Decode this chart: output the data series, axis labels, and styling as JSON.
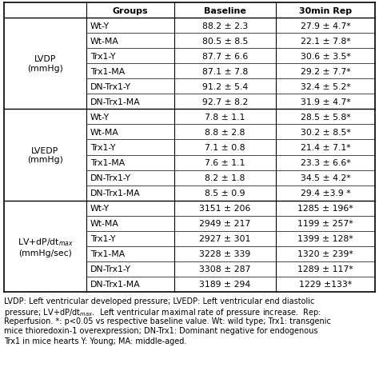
{
  "headers": [
    "Groups",
    "Baseline",
    "30min Rep"
  ],
  "sections": [
    {
      "label": "LVDP\n(mmHg)",
      "rows": [
        [
          "Wt-Y",
          "88.2 ± 2.3",
          "27.9 ± 4.7*"
        ],
        [
          "Wt-MA",
          "80.5 ± 8.5",
          "22.1 ± 7.8*"
        ],
        [
          "Trx1-Y",
          "87.7 ± 6.6",
          "30.6 ± 3.5*"
        ],
        [
          "Trx1-MA",
          "87.1 ± 7.8",
          "29.2 ± 7.7*"
        ],
        [
          "DN-Trx1-Y",
          "91.2 ± 5.4",
          "32.4 ± 5.2*"
        ],
        [
          "DN-Trx1-MA",
          "92.7 ± 8.2",
          "31.9 ± 4.7*"
        ]
      ]
    },
    {
      "label": "LVEDP\n(mmHg)",
      "rows": [
        [
          "Wt-Y",
          "7.8 ± 1.1",
          "28.5 ± 5.8*"
        ],
        [
          "Wt-MA",
          "8.8 ± 2.8",
          "30.2 ± 8.5*"
        ],
        [
          "Trx1-Y",
          "7.1 ± 0.8",
          "21.4 ± 7.1*"
        ],
        [
          "Trx1-MA",
          "7.6 ± 1.1",
          "23.3 ± 6.6*"
        ],
        [
          "DN-Trx1-Y",
          "8.2 ± 1.8",
          "34.5 ± 4.2*"
        ],
        [
          "DN-Trx1-MA",
          "8.5 ± 0.9",
          "29.4 ±3.9 *"
        ]
      ]
    },
    {
      "label": "LV+dP/dt$_{max}$\n(mmHg/sec)",
      "rows": [
        [
          "Wt-Y",
          "3151 ± 206",
          "1285 ± 196*"
        ],
        [
          "Wt-MA",
          "2949 ± 217",
          "1199 ± 257*"
        ],
        [
          "Trx1-Y",
          "2927 ± 301",
          "1399 ± 128*"
        ],
        [
          "Trx1-MA",
          "3228 ± 339",
          "1320 ± 239*"
        ],
        [
          "DN-Trx1-Y",
          "3308 ± 287",
          "1289 ± 117*"
        ],
        [
          "DN-Trx1-MA",
          "3189 ± 294",
          "1229 ±133*"
        ]
      ]
    }
  ],
  "footnote_lines": [
    "LVDP: Left ventricular developed pressure; LVEDP: Left ventricular end diastolic",
    "pressure; LV+dP/dt$_{max}$.  Left ventricular maximal rate of pressure increase.  Rep:",
    "Reperfusion. *: p<0.05 vs respective baseline value. Wt: wild type; Trx1: transgenic",
    "mice thioredoxin-1 overexpression; DN-Trx1: Dominant negative for endogenous",
    "Trx1 in mice hearts Y: Young; MA: middle-aged."
  ],
  "bg_color": "#ffffff",
  "line_color": "#000000",
  "text_color": "#000000",
  "header_fontsize": 8.0,
  "cell_fontsize": 7.8,
  "footnote_fontsize": 7.0
}
